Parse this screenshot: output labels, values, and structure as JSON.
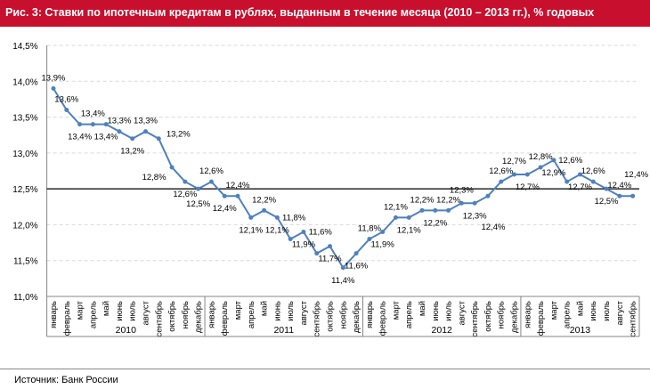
{
  "colors": {
    "title_bg": "#c8102e",
    "line": "#4f81bd",
    "reference": "#000000"
  },
  "chart_data": {
    "type": "line",
    "title": "Рис. 3: Ставки по ипотечным кредитам в рублях, выданным в течение месяца (2010 – 2013 гг.), % годовых",
    "xlabel": "",
    "ylabel": "",
    "ylim": [
      11.0,
      14.5
    ],
    "yticks": [
      "11,0%",
      "11,5%",
      "12,0%",
      "12,5%",
      "13,0%",
      "13,5%",
      "14,0%",
      "14,5%"
    ],
    "ytick_values": [
      11.0,
      11.5,
      12.0,
      12.5,
      13.0,
      13.5,
      14.0,
      14.5
    ],
    "grid": true,
    "reference_line": 12.5,
    "years": [
      {
        "label": "2010",
        "count": 12
      },
      {
        "label": "2011",
        "count": 12
      },
      {
        "label": "2012",
        "count": 12
      },
      {
        "label": "2013",
        "count": 9
      }
    ],
    "categories": [
      "январь",
      "февраль",
      "март",
      "апрель",
      "май",
      "июнь",
      "июль",
      "август",
      "сентябрь",
      "октябрь",
      "ноябрь",
      "декабрь",
      "январь",
      "февраль",
      "март",
      "апрель",
      "май",
      "июнь",
      "июль",
      "август",
      "сентябрь",
      "октябрь",
      "ноябрь",
      "декабрь",
      "январь",
      "февраль",
      "март",
      "апрель",
      "май",
      "июнь",
      "июль",
      "август",
      "сентябрь",
      "октябрь",
      "ноябрь",
      "декабрь",
      "январь",
      "февраль",
      "март",
      "апрель",
      "май",
      "июнь",
      "июль",
      "август",
      "сентябрь"
    ],
    "values": [
      13.9,
      13.6,
      13.4,
      13.4,
      13.4,
      13.3,
      13.2,
      13.3,
      13.2,
      12.8,
      12.6,
      12.5,
      12.6,
      12.4,
      12.4,
      12.1,
      12.2,
      12.1,
      11.8,
      11.9,
      11.6,
      11.7,
      11.4,
      11.6,
      11.8,
      11.9,
      12.1,
      12.1,
      12.2,
      12.2,
      12.2,
      12.3,
      12.3,
      12.4,
      12.6,
      12.7,
      12.7,
      12.8,
      12.9,
      12.6,
      12.7,
      12.6,
      12.5,
      12.4,
      12.4
    ],
    "data_labels": [
      "13,9%",
      "13,6%",
      "13,4%",
      "13,4%",
      "13,4%",
      "13,3%",
      "13,2%",
      "13,3%",
      "13,2%",
      "12,8%",
      "12,6%",
      "12,5%",
      "12,6%",
      "12,4%",
      "12,4%",
      "12,1%",
      "12,2%",
      "12,1%",
      "11,8%",
      "11,9%",
      "11,6%",
      "11,7%",
      "11,4%",
      "11,6%",
      "11,8%",
      "11,9%",
      "12,1%",
      "12,1%",
      "12,2%",
      "12,2%",
      "12,2%",
      "12,3%",
      "12,3%",
      "12,4%",
      "12,6%",
      "12,7%",
      "12,7%",
      "12,8%",
      "12,9%",
      "12,6%",
      "12,7%",
      "12,6%",
      "12,5%",
      "12,4%",
      "12,4%"
    ]
  },
  "source": "Источник: Банк России"
}
